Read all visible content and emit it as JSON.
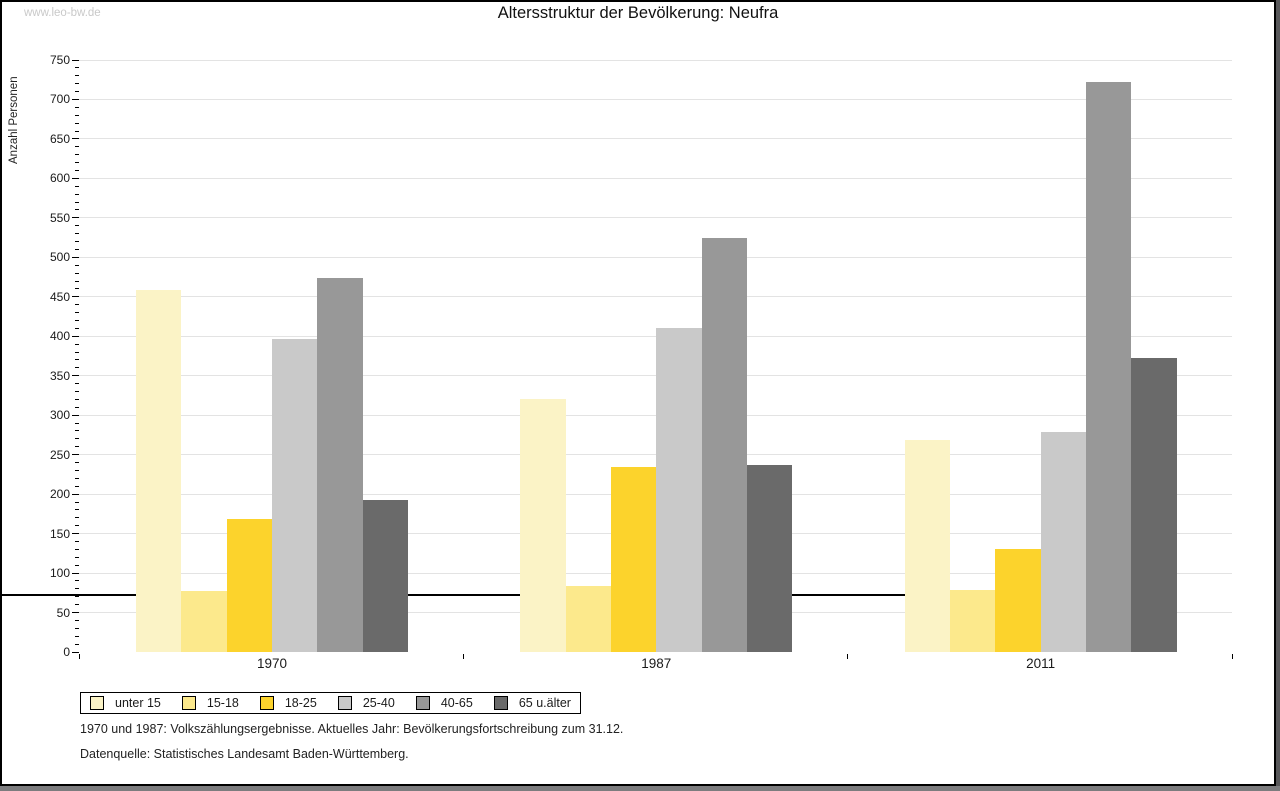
{
  "watermark": "www.leo-bw.de",
  "header": {
    "title": "Altersstruktur der Bevölkerung: Neufra"
  },
  "chart_data": {
    "type": "bar",
    "title": "Altersstruktur der Bevölkerung: Neufra",
    "xlabel": "",
    "ylabel": "Anzahl Personen",
    "ylim": [
      0,
      750
    ],
    "ytick_step": 50,
    "y_minor_tick_step": 10,
    "grid": true,
    "legend_position": "bottom-left",
    "categories": [
      "1970",
      "1987",
      "2011"
    ],
    "series": [
      {
        "name": "unter 15",
        "color": "#fbf3c6",
        "values": [
          458,
          321,
          269
        ]
      },
      {
        "name": "15-18",
        "color": "#fce98c",
        "values": [
          77,
          84,
          79
        ]
      },
      {
        "name": "18-25",
        "color": "#fcd32c",
        "values": [
          168,
          234,
          130
        ]
      },
      {
        "name": "25-40",
        "color": "#c9c9c9",
        "values": [
          396,
          410,
          279
        ]
      },
      {
        "name": "40-65",
        "color": "#989898",
        "values": [
          474,
          524,
          722
        ]
      },
      {
        "name": "65 u.älter",
        "color": "#6a6a6a",
        "values": [
          193,
          237,
          372
        ]
      }
    ]
  },
  "footnotes": [
    "1970 und 1987: Volkszählungsergebnisse. Aktuelles Jahr: Bevölkerungsfortschreibung zum 31.12.",
    "Datenquelle: Statistisches Landesamt Baden-Württemberg."
  ]
}
